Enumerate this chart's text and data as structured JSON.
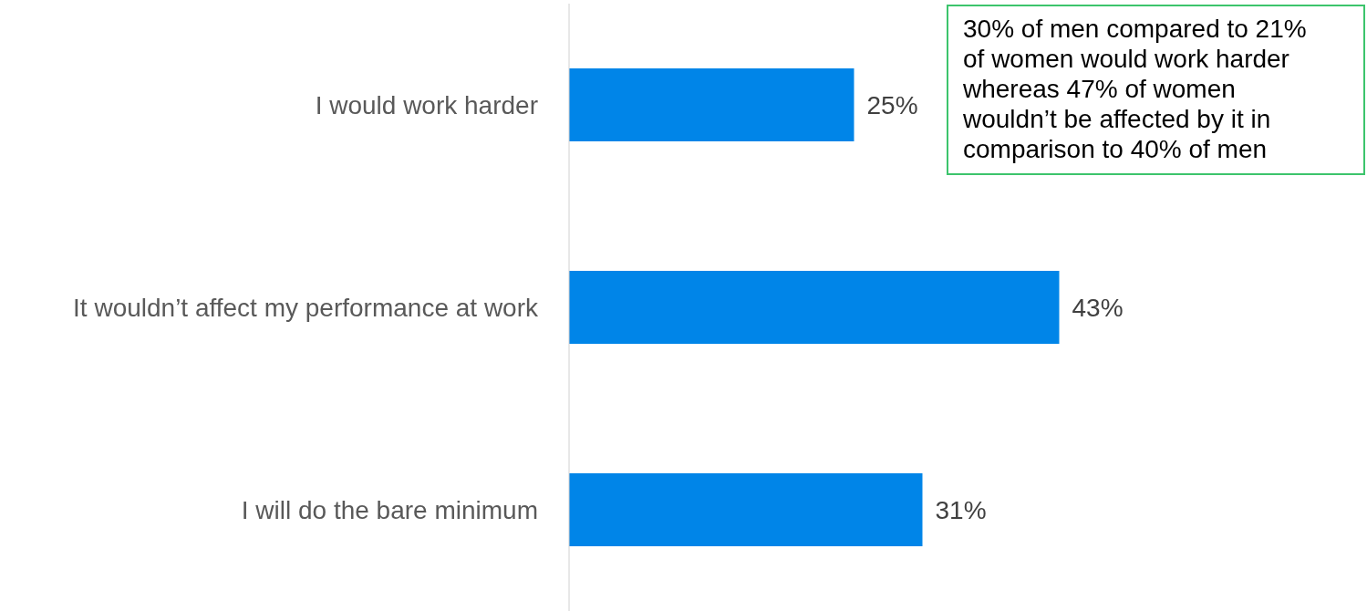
{
  "chart_data": {
    "type": "bar",
    "orientation": "horizontal",
    "categories": [
      "I would work harder",
      "It wouldn’t affect my performance at work",
      "I will do the bare minimum"
    ],
    "values": [
      25,
      43,
      31
    ],
    "color": "#0085e8",
    "value_labels": [
      "25%",
      "43%",
      "31%"
    ],
    "xlim": [
      0,
      70
    ],
    "annotations": [
      "30% of men compared to 21% of women would work harder whereas 47% of women wouldn’t be affected by it in comparison to 40% of men"
    ]
  }
}
